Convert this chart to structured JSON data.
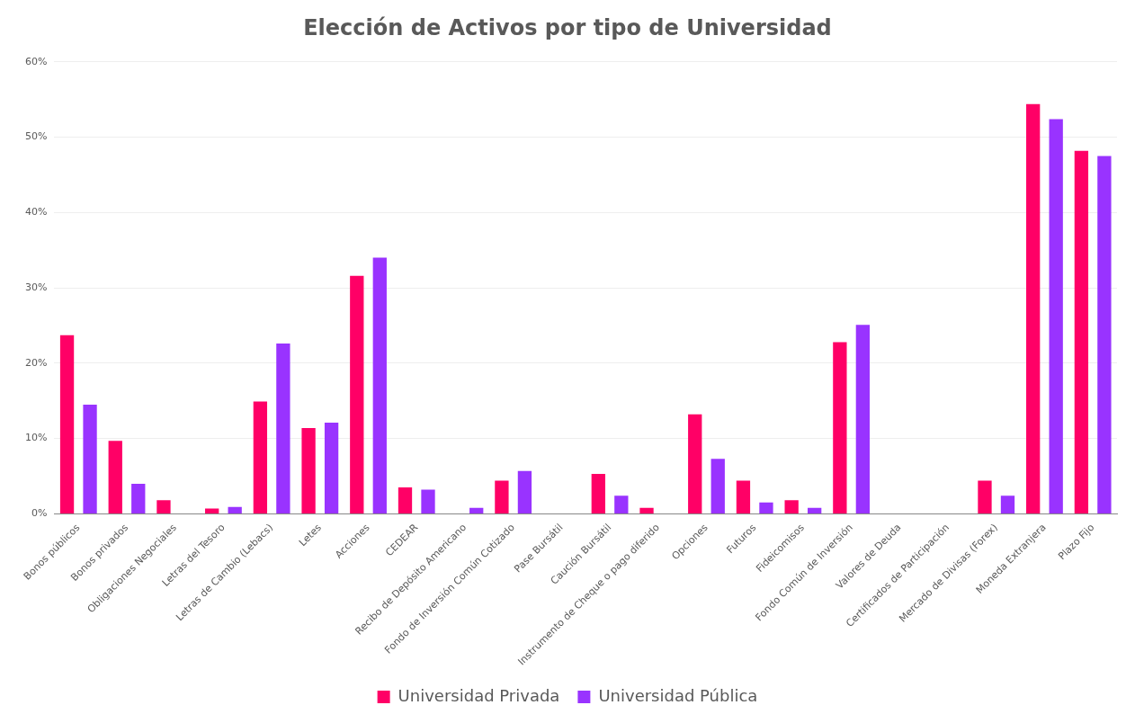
{
  "chart_data": {
    "type": "bar",
    "title": "Elección de Activos por tipo de Universidad",
    "categories": [
      "Bonos públicos",
      "Bonos privados",
      "Obligaciones Negociales",
      "Letras del Tesoro",
      "Letras de Cambio (Lebacs)",
      "Letes",
      "Acciones",
      "CEDEAR",
      "Recibo de Depósito Americano",
      "Fondo de Inversión Común Cotizado",
      "Pase Bursátil",
      "Caución Bursátil",
      "Instrumento de Cheque o pago diferido",
      "Opciones",
      "Futuros",
      "Fideicomisos",
      "Fondo Común de Inversión",
      "Valores de Deuda",
      "Certificados de Participación",
      "Mercado de Divisas (Forex)",
      "Moneda Extranjera",
      "Plazo Fijo"
    ],
    "series": [
      {
        "name": "Universidad Privada",
        "color": "#ff0066",
        "values": [
          23.7,
          9.7,
          1.8,
          0.7,
          14.9,
          11.4,
          31.6,
          3.5,
          0,
          4.4,
          0,
          5.3,
          0.8,
          13.2,
          4.4,
          1.8,
          22.8,
          0,
          0,
          4.4,
          54.4,
          48.2
        ]
      },
      {
        "name": "Universidad Pública",
        "color": "#9933ff",
        "values": [
          14.5,
          4.0,
          0,
          0.9,
          22.6,
          12.1,
          34.0,
          3.2,
          0.8,
          5.7,
          0,
          2.4,
          0,
          7.3,
          1.5,
          0.8,
          25.1,
          0,
          0,
          2.4,
          52.4,
          47.5
        ]
      }
    ],
    "ylim": [
      0,
      60
    ],
    "yticks": [
      {
        "value": 0,
        "label": "0%"
      },
      {
        "value": 10,
        "label": "10%"
      },
      {
        "value": 20,
        "label": "20%"
      },
      {
        "value": 30,
        "label": "30%"
      },
      {
        "value": 40,
        "label": "40%"
      },
      {
        "value": 50,
        "label": "50%"
      },
      {
        "value": 60,
        "label": "60%"
      }
    ],
    "grid": "y",
    "legend": "bottom"
  }
}
